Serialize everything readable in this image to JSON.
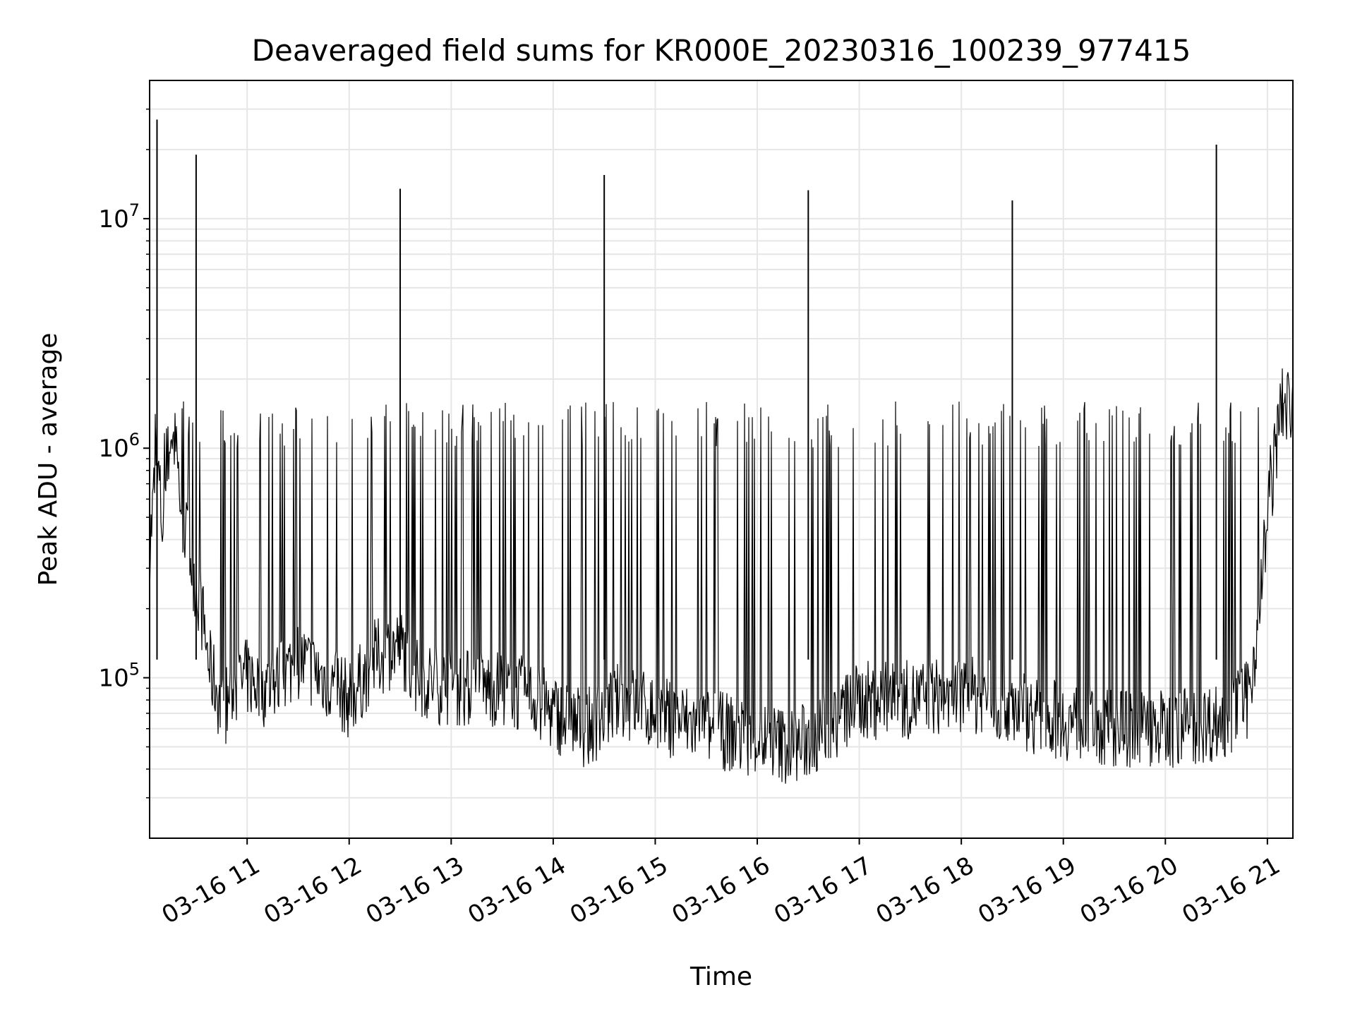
{
  "chart_data": {
    "type": "line",
    "title": "Deaveraged field sums for KR000E_20230316_100239_977415",
    "xlabel": "Time",
    "ylabel": "Peak ADU - average",
    "y_scale": "log",
    "ylim": [
      20000,
      40000000
    ],
    "xlim": [
      "2023-03-16T10:02:39",
      "2023-03-16T21:15:00"
    ],
    "grid": true,
    "line_color": "#000000",
    "x_ticks": [
      "03-16 11",
      "03-16 12",
      "03-16 13",
      "03-16 14",
      "03-16 15",
      "03-16 16",
      "03-16 17",
      "03-16 18",
      "03-16 19",
      "03-16 20",
      "03-16 21"
    ],
    "y_ticks": [
      {
        "base": "10",
        "exp": "5",
        "value": 100000
      },
      {
        "base": "10",
        "exp": "6",
        "value": 1000000
      },
      {
        "base": "10",
        "exp": "7",
        "value": 10000000
      }
    ],
    "series": [
      {
        "x": [
          "2023-03-16T10:02:39",
          "2023-03-16T10:07:00",
          "2023-03-16T10:10:00",
          "2023-03-16T10:15:00",
          "2023-03-16T10:18:00",
          "2023-03-16T10:22:00",
          "2023-03-16T10:28:00",
          "2023-03-16T10:33:00",
          "2023-03-16T10:38:00",
          "2023-03-16T10:42:00",
          "2023-03-16T10:45:00",
          "2023-03-16T10:52:00",
          "2023-03-16T11:00:00",
          "2023-03-16T11:10:00",
          "2023-03-16T11:20:00",
          "2023-03-16T11:30:00",
          "2023-03-16T11:45:00",
          "2023-03-16T12:00:00",
          "2023-03-16T12:15:00",
          "2023-03-16T12:30:00",
          "2023-03-16T12:35:00",
          "2023-03-16T12:40:00",
          "2023-03-16T13:00:00",
          "2023-03-16T13:30:00",
          "2023-03-16T13:50:00",
          "2023-03-16T14:00:00",
          "2023-03-16T14:20:00",
          "2023-03-16T14:35:00",
          "2023-03-16T14:40:00",
          "2023-03-16T15:00:00",
          "2023-03-16T15:30:00",
          "2023-03-16T16:00:00",
          "2023-03-16T16:20:00",
          "2023-03-16T16:35:00",
          "2023-03-16T16:40:00",
          "2023-03-16T17:00:00",
          "2023-03-16T17:30:00",
          "2023-03-16T18:00:00",
          "2023-03-16T18:35:00",
          "2023-03-16T18:40:00",
          "2023-03-16T19:00:00",
          "2023-03-16T19:30:00",
          "2023-03-16T20:00:00",
          "2023-03-16T20:35:00",
          "2023-03-16T20:40:00",
          "2023-03-16T20:48:00",
          "2023-03-16T20:52:00",
          "2023-03-16T21:00:00",
          "2023-03-16T21:08:00",
          "2023-03-16T21:15:00"
        ],
        "y": [
          350000,
          1000000,
          450000,
          1200000,
          1000000,
          500000,
          300000,
          200000,
          110000,
          90000,
          70000,
          90000,
          100000,
          90000,
          100000,
          120000,
          100000,
          80000,
          120000,
          140000,
          120000,
          100000,
          90000,
          90000,
          80000,
          70000,
          60000,
          75000,
          80000,
          70000,
          60000,
          55000,
          50000,
          55000,
          60000,
          80000,
          80000,
          85000,
          75000,
          70000,
          65000,
          60000,
          60000,
          65000,
          70000,
          80000,
          120000,
          500000,
          1500000,
          1600000
        ]
      }
    ],
    "spikes": [
      {
        "x": "2023-03-16T10:07:00",
        "y": 27000000
      },
      {
        "x": "2023-03-16T10:30:00",
        "y": 19000000
      },
      {
        "x": "2023-03-16T12:30:00",
        "y": 13500000
      },
      {
        "x": "2023-03-16T14:30:00",
        "y": 15500000
      },
      {
        "x": "2023-03-16T16:30:00",
        "y": 13300000
      },
      {
        "x": "2023-03-16T18:30:00",
        "y": 12000000
      },
      {
        "x": "2023-03-16T20:30:00",
        "y": 21000000
      }
    ]
  }
}
